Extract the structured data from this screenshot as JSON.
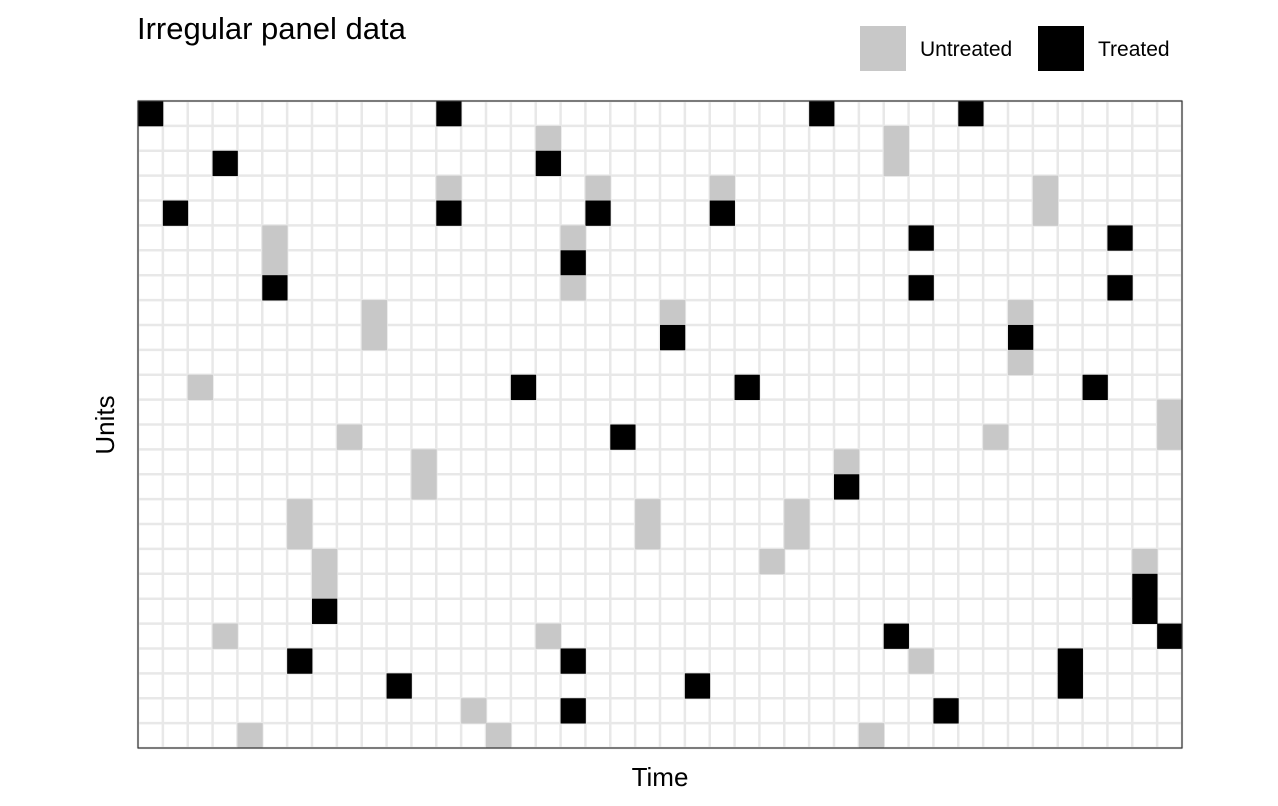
{
  "chart_data": {
    "type": "heatmap",
    "title": "Irregular panel data",
    "xlabel": "Time",
    "ylabel": "Units",
    "n_time": 42,
    "n_units": 26,
    "grid": true,
    "legend": {
      "position": "top-right",
      "entries": [
        {
          "label": "Untreated",
          "color": "#c8c8c8"
        },
        {
          "label": "Treated",
          "color": "#000000"
        }
      ]
    },
    "colors": {
      "untreated": "#c8c8c8",
      "treated": "#000000",
      "missing": "#ffffff",
      "grid": "#e8e8e8",
      "border": "#333333"
    },
    "cells": [
      {
        "unit": 1,
        "time": 1,
        "status": "treated"
      },
      {
        "unit": 1,
        "time": 13,
        "status": "treated"
      },
      {
        "unit": 1,
        "time": 28,
        "status": "treated"
      },
      {
        "unit": 1,
        "time": 34,
        "status": "treated"
      },
      {
        "unit": 2,
        "time": 17,
        "status": "untreated"
      },
      {
        "unit": 2,
        "time": 31,
        "status": "untreated"
      },
      {
        "unit": 3,
        "time": 4,
        "status": "treated"
      },
      {
        "unit": 3,
        "time": 17,
        "status": "treated"
      },
      {
        "unit": 3,
        "time": 31,
        "status": "untreated"
      },
      {
        "unit": 4,
        "time": 13,
        "status": "untreated"
      },
      {
        "unit": 4,
        "time": 19,
        "status": "untreated"
      },
      {
        "unit": 4,
        "time": 24,
        "status": "untreated"
      },
      {
        "unit": 4,
        "time": 37,
        "status": "untreated"
      },
      {
        "unit": 5,
        "time": 2,
        "status": "treated"
      },
      {
        "unit": 5,
        "time": 13,
        "status": "treated"
      },
      {
        "unit": 5,
        "time": 19,
        "status": "treated"
      },
      {
        "unit": 5,
        "time": 24,
        "status": "treated"
      },
      {
        "unit": 5,
        "time": 37,
        "status": "untreated"
      },
      {
        "unit": 6,
        "time": 6,
        "status": "untreated"
      },
      {
        "unit": 6,
        "time": 18,
        "status": "untreated"
      },
      {
        "unit": 6,
        "time": 32,
        "status": "treated"
      },
      {
        "unit": 6,
        "time": 40,
        "status": "treated"
      },
      {
        "unit": 7,
        "time": 6,
        "status": "untreated"
      },
      {
        "unit": 7,
        "time": 18,
        "status": "treated"
      },
      {
        "unit": 8,
        "time": 6,
        "status": "treated"
      },
      {
        "unit": 8,
        "time": 18,
        "status": "untreated"
      },
      {
        "unit": 8,
        "time": 32,
        "status": "treated"
      },
      {
        "unit": 8,
        "time": 40,
        "status": "treated"
      },
      {
        "unit": 9,
        "time": 10,
        "status": "untreated"
      },
      {
        "unit": 9,
        "time": 22,
        "status": "untreated"
      },
      {
        "unit": 9,
        "time": 36,
        "status": "untreated"
      },
      {
        "unit": 10,
        "time": 10,
        "status": "untreated"
      },
      {
        "unit": 10,
        "time": 22,
        "status": "treated"
      },
      {
        "unit": 10,
        "time": 36,
        "status": "treated"
      },
      {
        "unit": 11,
        "time": 36,
        "status": "untreated"
      },
      {
        "unit": 12,
        "time": 3,
        "status": "untreated"
      },
      {
        "unit": 12,
        "time": 16,
        "status": "treated"
      },
      {
        "unit": 12,
        "time": 25,
        "status": "treated"
      },
      {
        "unit": 12,
        "time": 39,
        "status": "treated"
      },
      {
        "unit": 13,
        "time": 42,
        "status": "untreated"
      },
      {
        "unit": 14,
        "time": 9,
        "status": "untreated"
      },
      {
        "unit": 14,
        "time": 20,
        "status": "treated"
      },
      {
        "unit": 14,
        "time": 35,
        "status": "untreated"
      },
      {
        "unit": 14,
        "time": 42,
        "status": "untreated"
      },
      {
        "unit": 15,
        "time": 12,
        "status": "untreated"
      },
      {
        "unit": 15,
        "time": 29,
        "status": "untreated"
      },
      {
        "unit": 16,
        "time": 12,
        "status": "untreated"
      },
      {
        "unit": 16,
        "time": 29,
        "status": "treated"
      },
      {
        "unit": 17,
        "time": 7,
        "status": "untreated"
      },
      {
        "unit": 17,
        "time": 21,
        "status": "untreated"
      },
      {
        "unit": 17,
        "time": 27,
        "status": "untreated"
      },
      {
        "unit": 18,
        "time": 7,
        "status": "untreated"
      },
      {
        "unit": 18,
        "time": 21,
        "status": "untreated"
      },
      {
        "unit": 18,
        "time": 27,
        "status": "untreated"
      },
      {
        "unit": 19,
        "time": 8,
        "status": "untreated"
      },
      {
        "unit": 19,
        "time": 26,
        "status": "untreated"
      },
      {
        "unit": 19,
        "time": 41,
        "status": "untreated"
      },
      {
        "unit": 20,
        "time": 8,
        "status": "untreated"
      },
      {
        "unit": 20,
        "time": 41,
        "status": "treated"
      },
      {
        "unit": 21,
        "time": 8,
        "status": "treated"
      },
      {
        "unit": 21,
        "time": 41,
        "status": "treated"
      },
      {
        "unit": 22,
        "time": 4,
        "status": "untreated"
      },
      {
        "unit": 22,
        "time": 17,
        "status": "untreated"
      },
      {
        "unit": 22,
        "time": 31,
        "status": "treated"
      },
      {
        "unit": 22,
        "time": 42,
        "status": "treated"
      },
      {
        "unit": 23,
        "time": 7,
        "status": "treated"
      },
      {
        "unit": 23,
        "time": 18,
        "status": "treated"
      },
      {
        "unit": 23,
        "time": 32,
        "status": "untreated"
      },
      {
        "unit": 23,
        "time": 38,
        "status": "treated"
      },
      {
        "unit": 24,
        "time": 11,
        "status": "treated"
      },
      {
        "unit": 24,
        "time": 23,
        "status": "treated"
      },
      {
        "unit": 24,
        "time": 38,
        "status": "treated"
      },
      {
        "unit": 25,
        "time": 14,
        "status": "untreated"
      },
      {
        "unit": 25,
        "time": 18,
        "status": "treated"
      },
      {
        "unit": 25,
        "time": 33,
        "status": "treated"
      },
      {
        "unit": 26,
        "time": 5,
        "status": "untreated"
      },
      {
        "unit": 26,
        "time": 15,
        "status": "untreated"
      },
      {
        "unit": 26,
        "time": 30,
        "status": "untreated"
      }
    ]
  }
}
